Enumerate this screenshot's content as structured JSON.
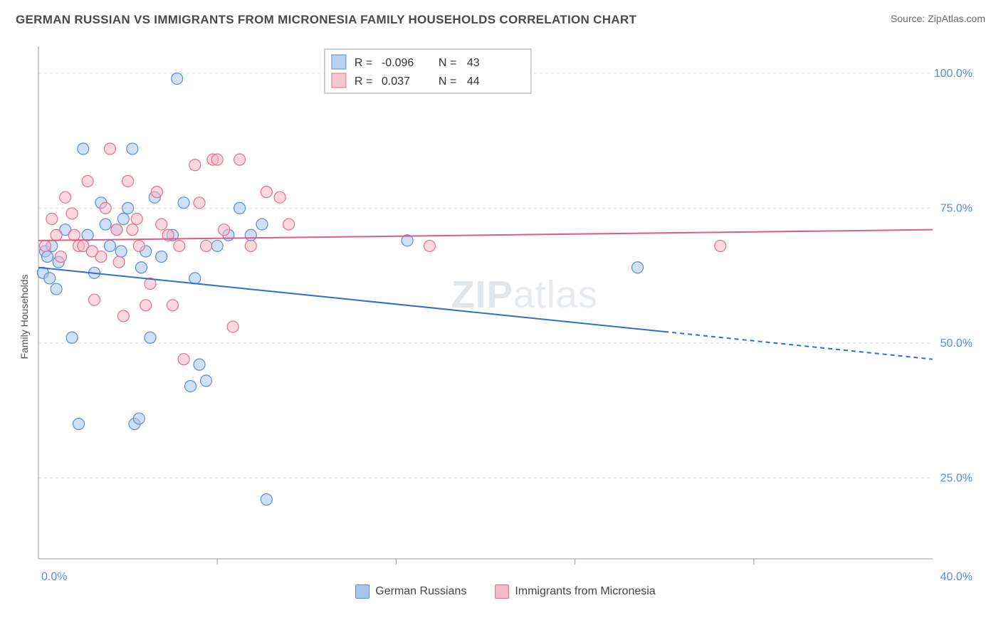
{
  "header": {
    "title": "GERMAN RUSSIAN VS IMMIGRANTS FROM MICRONESIA FAMILY HOUSEHOLDS CORRELATION CHART",
    "source": "Source: ZipAtlas.com"
  },
  "watermark": {
    "bold": "ZIP",
    "thin": "atlas"
  },
  "chart": {
    "type": "scatter",
    "ylabel": "Family Households",
    "background_color": "#ffffff",
    "grid_color": "#dcdcdc",
    "axis_color": "#999999",
    "label_color": "#5b8dd6",
    "xlim": [
      0,
      40
    ],
    "ylim": [
      10,
      105
    ],
    "ytick_values": [
      25,
      50,
      75,
      100
    ],
    "ytick_labels": [
      "25.0%",
      "50.0%",
      "75.0%",
      "100.0%"
    ],
    "xtick_labels": {
      "min": "0.0%",
      "max": "40.0%"
    },
    "xtick_minor_positions": [
      8,
      16,
      24,
      32
    ],
    "marker_radius": 8,
    "marker_stroke_width": 1.2,
    "series": [
      {
        "id": "german_russians",
        "label": "German Russians",
        "fill": "#a7c6ed",
        "fill_opacity": 0.55,
        "stroke": "#5b8dd6",
        "line_color": "#2f6fd0",
        "line_width": 2,
        "points": [
          [
            0.2,
            63
          ],
          [
            0.3,
            67
          ],
          [
            0.4,
            66
          ],
          [
            0.5,
            62
          ],
          [
            0.6,
            68
          ],
          [
            0.8,
            60
          ],
          [
            1.5,
            51
          ],
          [
            1.8,
            35
          ],
          [
            2.0,
            86
          ],
          [
            2.5,
            63
          ],
          [
            2.8,
            76
          ],
          [
            3.0,
            72
          ],
          [
            3.2,
            68
          ],
          [
            3.5,
            71
          ],
          [
            3.7,
            67
          ],
          [
            4.0,
            75
          ],
          [
            4.2,
            86
          ],
          [
            4.3,
            35
          ],
          [
            4.5,
            36
          ],
          [
            4.8,
            67
          ],
          [
            5.0,
            51
          ],
          [
            5.2,
            77
          ],
          [
            5.5,
            66
          ],
          [
            6.0,
            70
          ],
          [
            6.2,
            99
          ],
          [
            6.5,
            76
          ],
          [
            6.8,
            42
          ],
          [
            7.0,
            62
          ],
          [
            7.2,
            46
          ],
          [
            7.5,
            43
          ],
          [
            8.0,
            68
          ],
          [
            8.5,
            70
          ],
          [
            9.0,
            75
          ],
          [
            9.5,
            70
          ],
          [
            10.0,
            72
          ],
          [
            10.2,
            21
          ],
          [
            16.5,
            69
          ],
          [
            26.8,
            64
          ],
          [
            3.8,
            73
          ],
          [
            2.2,
            70
          ],
          [
            4.6,
            64
          ],
          [
            1.2,
            71
          ],
          [
            0.9,
            65
          ]
        ],
        "trend": {
          "y_at_xmin": 64,
          "y_at_xmax": 47,
          "dashed_from_x": 28
        }
      },
      {
        "id": "immigrants_micronesia",
        "label": "Immigrants from Micronesia",
        "fill": "#f4b8c6",
        "fill_opacity": 0.55,
        "stroke": "#e46f8e",
        "line_color": "#e05a85",
        "line_width": 2,
        "points": [
          [
            0.3,
            68
          ],
          [
            0.6,
            73
          ],
          [
            0.8,
            70
          ],
          [
            1.0,
            66
          ],
          [
            1.2,
            77
          ],
          [
            1.5,
            74
          ],
          [
            1.8,
            68
          ],
          [
            2.0,
            68
          ],
          [
            2.2,
            80
          ],
          [
            2.5,
            58
          ],
          [
            2.8,
            66
          ],
          [
            3.0,
            75
          ],
          [
            3.2,
            86
          ],
          [
            3.5,
            71
          ],
          [
            3.8,
            55
          ],
          [
            4.0,
            80
          ],
          [
            4.2,
            71
          ],
          [
            4.5,
            68
          ],
          [
            4.8,
            57
          ],
          [
            5.0,
            61
          ],
          [
            5.3,
            78
          ],
          [
            5.5,
            72
          ],
          [
            5.8,
            70
          ],
          [
            6.0,
            57
          ],
          [
            6.3,
            68
          ],
          [
            6.5,
            47
          ],
          [
            7.0,
            83
          ],
          [
            7.2,
            76
          ],
          [
            7.5,
            68
          ],
          [
            7.8,
            84
          ],
          [
            8.0,
            84
          ],
          [
            8.3,
            71
          ],
          [
            8.7,
            53
          ],
          [
            9.0,
            84
          ],
          [
            9.5,
            68
          ],
          [
            10.2,
            78
          ],
          [
            10.8,
            77
          ],
          [
            11.2,
            72
          ],
          [
            17.5,
            68
          ],
          [
            30.5,
            68
          ],
          [
            1.6,
            70
          ],
          [
            2.4,
            67
          ],
          [
            3.6,
            65
          ],
          [
            4.4,
            73
          ]
        ],
        "trend": {
          "y_at_xmin": 69,
          "y_at_xmax": 71,
          "dashed_from_x": null
        }
      }
    ],
    "legend_top": {
      "rows": [
        {
          "swatch_series": 0,
          "r_label": "R =",
          "r_value": "-0.096",
          "n_label": "N =",
          "n_value": "43"
        },
        {
          "swatch_series": 1,
          "r_label": "R =",
          "r_value": "0.037",
          "n_label": "N =",
          "n_value": "44"
        }
      ],
      "text_color": "#5b8dd6",
      "label_color": "#333333",
      "border_color": "#9aa7b5"
    }
  }
}
